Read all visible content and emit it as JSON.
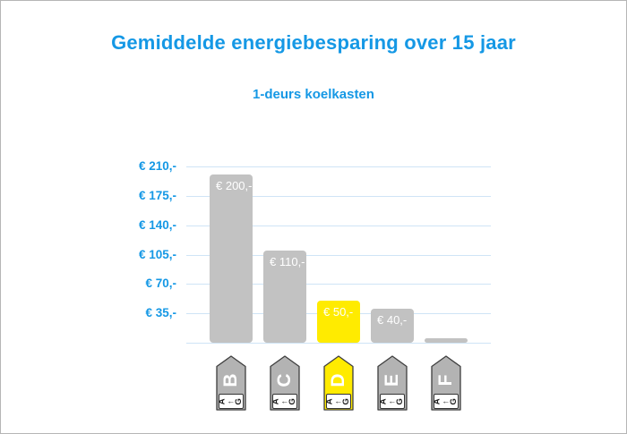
{
  "page": {
    "title": "Gemiddelde energiebesparing over 15 jaar",
    "subtitle": "1-deurs koelkasten"
  },
  "chart_data": {
    "type": "bar",
    "title": "Gemiddelde energiebesparing over 15 jaar",
    "subtitle": "1-deurs koelkasten",
    "categories": [
      "B",
      "C",
      "D",
      "E",
      "F"
    ],
    "values": [
      200,
      110,
      50,
      40,
      5
    ],
    "bar_value_labels": [
      "€ 200,-",
      "€ 110,-",
      "€ 50,-",
      "€ 40,-",
      ""
    ],
    "highlight_index": 2,
    "highlighted_category": "D",
    "y_axis_tick_labels": [
      "€ 210,-",
      "€ 175,-",
      "€ 140,-",
      "€ 105,-",
      "€ 70,-",
      "€ 35,-"
    ],
    "y_axis_tick_values": [
      210,
      175,
      140,
      105,
      70,
      35
    ],
    "ylim": [
      0,
      224
    ],
    "grid": true,
    "legend": "none",
    "currency": "EUR",
    "colors": {
      "bar": "#c2c2c2",
      "highlight": "#ffeb00",
      "tag_fill": "#b3b3b3",
      "tag_highlight": "#ffeb00",
      "tag_outline": "#3e3e3e",
      "bar_label_text": "#ffffff",
      "axis_text": "#1598e5",
      "gridline": "#cfe4f6"
    },
    "x_axis_icons": {
      "type": "eu-energy-label-tag",
      "letters": [
        "B",
        "C",
        "D",
        "E",
        "F"
      ],
      "scale_text": "A←G",
      "scale_first": "A",
      "scale_arrow": "←",
      "scale_last": "G"
    }
  }
}
